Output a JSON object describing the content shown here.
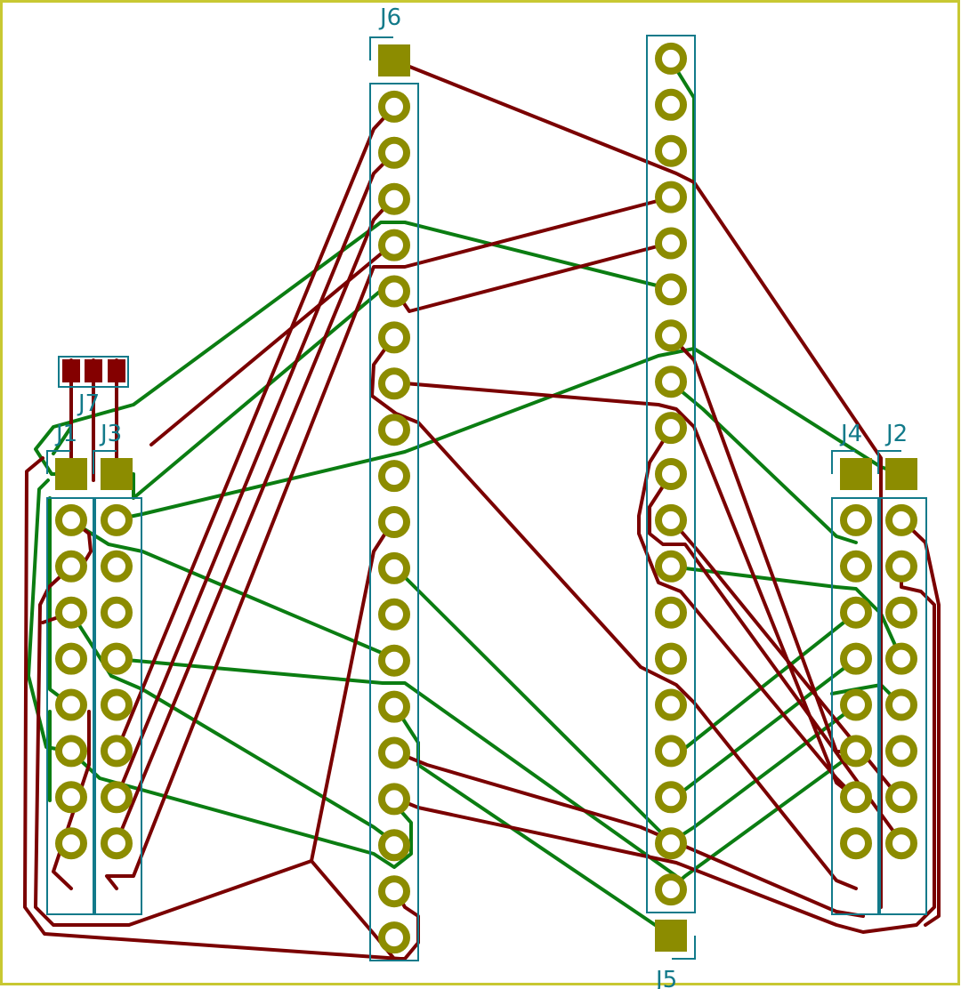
{
  "colors": {
    "edge": "#c8c832",
    "outline": "#127a8a",
    "pad": "#8c8c00",
    "top_copper": "#7a0000",
    "bottom_copper": "#0b7d12",
    "smd_pad": "#840000",
    "label": "#127a8a"
  },
  "connectors": [
    {
      "ref": "J1",
      "label": "J1",
      "pins": 9
    },
    {
      "ref": "J2",
      "label": "J2",
      "pins": 9
    },
    {
      "ref": "J3",
      "label": "J3",
      "pins": 9
    },
    {
      "ref": "J4",
      "label": "J4",
      "pins": 9
    },
    {
      "ref": "J5",
      "label": "J5",
      "pins": 20
    },
    {
      "ref": "J6",
      "label": "J6",
      "pins": 20
    },
    {
      "ref": "J7",
      "label": "J7",
      "pins": 3
    }
  ]
}
